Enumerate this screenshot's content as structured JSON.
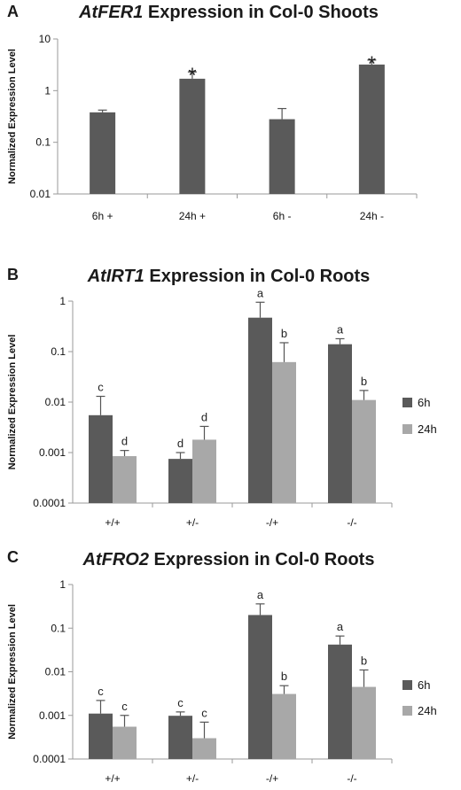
{
  "chart_data": [
    {
      "type": "bar",
      "panel_label": "A",
      "title_gene": "AtFER1",
      "title_rest": " Expression in Col-0 Shoots",
      "ylabel": "Normalized Expression Level",
      "y_scale": "log",
      "ylim": [
        0.01,
        10
      ],
      "y_ticks": [
        "0.01",
        "0.1",
        "1",
        "10"
      ],
      "categories": [
        "6h +",
        "24h +",
        "6h -",
        "24h -"
      ],
      "series": [
        {
          "values": [
            0.38,
            1.7,
            0.28,
            3.2
          ],
          "errors": [
            0.42,
            2.3,
            0.45,
            3.9
          ],
          "color": "#5a5a5a"
        }
      ],
      "annotations": [
        [
          "",
          "*",
          "",
          "*"
        ]
      ],
      "legend": null
    },
    {
      "type": "bar",
      "panel_label": "B",
      "title_gene": "AtIRT1",
      "title_rest": " Expression in Col-0 Roots",
      "ylabel": "Normalized Expression Level",
      "y_scale": "log",
      "ylim": [
        0.0001,
        1
      ],
      "y_ticks": [
        "0.0001",
        "0.001",
        "0.01",
        "0.1",
        "1"
      ],
      "categories": [
        "+/+",
        "+/-",
        "-/+",
        "-/-"
      ],
      "series": [
        {
          "name": "6h",
          "values": [
            0.0055,
            0.00075,
            0.47,
            0.14
          ],
          "errors": [
            0.013,
            0.001,
            0.95,
            0.18
          ],
          "color": "#5a5a5a"
        },
        {
          "name": "24h",
          "values": [
            0.00085,
            0.0018,
            0.062,
            0.011
          ],
          "errors": [
            0.0011,
            0.0033,
            0.15,
            0.017
          ],
          "color": "#a8a8a8"
        }
      ],
      "annotations": [
        [
          "c",
          "d",
          "a",
          "a"
        ],
        [
          "d",
          "d",
          "b",
          "b"
        ]
      ],
      "legend": "right"
    },
    {
      "type": "bar",
      "panel_label": "C",
      "title_gene": "AtFRO2",
      "title_rest": " Expression in Col-0 Roots",
      "ylabel": "Normalized Expression Level",
      "y_scale": "log",
      "ylim": [
        0.0001,
        1
      ],
      "y_ticks": [
        "0.0001",
        "0.001",
        "0.01",
        "0.1",
        "1"
      ],
      "categories": [
        "+/+",
        "+/-",
        "-/+",
        "-/-"
      ],
      "series": [
        {
          "name": "6h",
          "values": [
            0.0011,
            0.00098,
            0.2,
            0.042
          ],
          "errors": [
            0.0022,
            0.0012,
            0.36,
            0.066
          ],
          "color": "#5a5a5a"
        },
        {
          "name": "24h",
          "values": [
            0.00055,
            0.0003,
            0.0031,
            0.0045
          ],
          "errors": [
            0.001,
            0.0007,
            0.0048,
            0.011
          ],
          "color": "#a8a8a8"
        }
      ],
      "annotations": [
        [
          "c",
          "c",
          "a",
          "a"
        ],
        [
          "c",
          "c",
          "b",
          "b"
        ]
      ],
      "legend": "right"
    }
  ]
}
